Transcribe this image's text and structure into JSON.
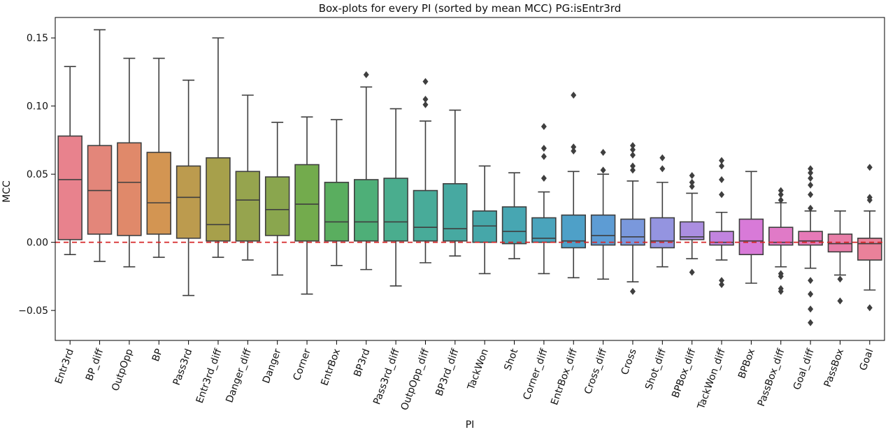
{
  "chart_data": {
    "type": "boxplot",
    "title": "Box-plots for every PI (sorted by mean MCC) PG:isEntr3rd",
    "xlabel": "PI",
    "ylabel": "MCC",
    "ylim": [
      -0.072,
      0.165
    ],
    "yticks": [
      -0.05,
      0.0,
      0.05,
      0.1,
      0.15
    ],
    "ytick_labels": [
      "−0.05",
      "0.00",
      "0.05",
      "0.10",
      "0.15"
    ],
    "reference_line": {
      "y": 0.0,
      "color": "#d62728",
      "style": "dashed"
    },
    "categories": [
      "Entr3rd",
      "BP_diff",
      "OutpOpp",
      "BP",
      "Pass3rd",
      "Entr3rd_diff",
      "Danger_diff",
      "Danger",
      "Corner",
      "EntrBox",
      "BP3rd",
      "Pass3rd_diff",
      "OutpOpp_diff",
      "BP3rd_diff",
      "TackWon",
      "Shot",
      "Corner_diff",
      "EntrBox_diff",
      "Cross_diff",
      "Cross",
      "Shot_diff",
      "BPBox_diff",
      "TackWon_diff",
      "BPBox",
      "PassBox_diff",
      "Goal_diff",
      "PassBox",
      "Goal"
    ],
    "colors": [
      "#e8828d",
      "#e3867a",
      "#e0896a",
      "#d39552",
      "#bc9b4e",
      "#a7a04b",
      "#96a44e",
      "#8aa64e",
      "#73ab4d",
      "#5aae5f",
      "#4eaf78",
      "#4aad8e",
      "#48ab99",
      "#47a9a1",
      "#46a7a9",
      "#47a6b2",
      "#4aa4bc",
      "#4ea0c8",
      "#5d9cd4",
      "#7a98dc",
      "#9494e0",
      "#ab8ee0",
      "#c184df",
      "#d87ad8",
      "#e07ac7",
      "#e67ab8",
      "#e87ea8",
      "#ea819a"
    ],
    "boxes": [
      {
        "whisker_low": -0.009,
        "q1": 0.002,
        "median": 0.046,
        "q3": 0.078,
        "whisker_high": 0.129,
        "outliers": []
      },
      {
        "whisker_low": -0.014,
        "q1": 0.006,
        "median": 0.038,
        "q3": 0.071,
        "whisker_high": 0.156,
        "outliers": []
      },
      {
        "whisker_low": -0.018,
        "q1": 0.005,
        "median": 0.044,
        "q3": 0.073,
        "whisker_high": 0.135,
        "outliers": []
      },
      {
        "whisker_low": -0.011,
        "q1": 0.006,
        "median": 0.029,
        "q3": 0.066,
        "whisker_high": 0.135,
        "outliers": []
      },
      {
        "whisker_low": -0.039,
        "q1": 0.003,
        "median": 0.033,
        "q3": 0.056,
        "whisker_high": 0.119,
        "outliers": []
      },
      {
        "whisker_low": -0.011,
        "q1": 0.001,
        "median": 0.013,
        "q3": 0.062,
        "whisker_high": 0.15,
        "outliers": []
      },
      {
        "whisker_low": -0.013,
        "q1": 0.001,
        "median": 0.031,
        "q3": 0.052,
        "whisker_high": 0.108,
        "outliers": []
      },
      {
        "whisker_low": -0.024,
        "q1": 0.005,
        "median": 0.024,
        "q3": 0.048,
        "whisker_high": 0.088,
        "outliers": []
      },
      {
        "whisker_low": -0.038,
        "q1": 0.001,
        "median": 0.028,
        "q3": 0.057,
        "whisker_high": 0.092,
        "outliers": []
      },
      {
        "whisker_low": -0.017,
        "q1": 0.001,
        "median": 0.015,
        "q3": 0.044,
        "whisker_high": 0.09,
        "outliers": []
      },
      {
        "whisker_low": -0.02,
        "q1": 0.001,
        "median": 0.015,
        "q3": 0.046,
        "whisker_high": 0.114,
        "outliers": [
          0.123
        ]
      },
      {
        "whisker_low": -0.032,
        "q1": 0.001,
        "median": 0.015,
        "q3": 0.047,
        "whisker_high": 0.098,
        "outliers": []
      },
      {
        "whisker_low": -0.015,
        "q1": 0.001,
        "median": 0.011,
        "q3": 0.038,
        "whisker_high": 0.089,
        "outliers": [
          0.101,
          0.105,
          0.118
        ]
      },
      {
        "whisker_low": -0.01,
        "q1": 0.001,
        "median": 0.01,
        "q3": 0.043,
        "whisker_high": 0.097,
        "outliers": []
      },
      {
        "whisker_low": -0.023,
        "q1": 0.0,
        "median": 0.012,
        "q3": 0.023,
        "whisker_high": 0.056,
        "outliers": []
      },
      {
        "whisker_low": -0.012,
        "q1": -0.001,
        "median": 0.008,
        "q3": 0.026,
        "whisker_high": 0.051,
        "outliers": []
      },
      {
        "whisker_low": -0.023,
        "q1": 0.0,
        "median": 0.003,
        "q3": 0.018,
        "whisker_high": 0.037,
        "outliers": [
          0.047,
          0.063,
          0.069,
          0.085
        ]
      },
      {
        "whisker_low": -0.026,
        "q1": -0.004,
        "median": 0.001,
        "q3": 0.02,
        "whisker_high": 0.052,
        "outliers": [
          0.067,
          0.07,
          0.108
        ]
      },
      {
        "whisker_low": -0.027,
        "q1": -0.002,
        "median": 0.005,
        "q3": 0.02,
        "whisker_high": 0.05,
        "outliers": [
          0.053,
          0.066
        ]
      },
      {
        "whisker_low": -0.029,
        "q1": -0.002,
        "median": 0.004,
        "q3": 0.017,
        "whisker_high": 0.045,
        "outliers": [
          -0.036,
          0.053,
          0.056,
          0.064,
          0.068,
          0.071
        ]
      },
      {
        "whisker_low": -0.018,
        "q1": -0.004,
        "median": 0.001,
        "q3": 0.018,
        "whisker_high": 0.044,
        "outliers": [
          0.054,
          0.062
        ]
      },
      {
        "whisker_low": -0.012,
        "q1": 0.002,
        "median": 0.004,
        "q3": 0.015,
        "whisker_high": 0.036,
        "outliers": [
          -0.022,
          0.041,
          0.044,
          0.049
        ]
      },
      {
        "whisker_low": -0.013,
        "q1": -0.002,
        "median": 0.0,
        "q3": 0.008,
        "whisker_high": 0.022,
        "outliers": [
          -0.031,
          -0.028,
          0.035,
          0.046,
          0.056,
          0.06
        ]
      },
      {
        "whisker_low": -0.03,
        "q1": -0.009,
        "median": 0.001,
        "q3": 0.017,
        "whisker_high": 0.052,
        "outliers": []
      },
      {
        "whisker_low": -0.018,
        "q1": -0.002,
        "median": 0.0,
        "q3": 0.011,
        "whisker_high": 0.029,
        "outliers": [
          -0.036,
          -0.034,
          -0.025,
          -0.023,
          0.031,
          0.035,
          0.038
        ]
      },
      {
        "whisker_low": -0.019,
        "q1": -0.002,
        "median": 0.001,
        "q3": 0.008,
        "whisker_high": 0.023,
        "outliers": [
          -0.059,
          -0.049,
          -0.038,
          -0.028,
          0.025,
          0.035,
          0.042,
          0.047,
          0.051,
          0.054
        ]
      },
      {
        "whisker_low": -0.024,
        "q1": -0.007,
        "median": -0.001,
        "q3": 0.006,
        "whisker_high": 0.023,
        "outliers": [
          -0.043,
          -0.027
        ]
      },
      {
        "whisker_low": -0.035,
        "q1": -0.013,
        "median": -0.001,
        "q3": 0.003,
        "whisker_high": 0.023,
        "outliers": [
          -0.048,
          0.031,
          0.033,
          0.055
        ]
      }
    ]
  }
}
